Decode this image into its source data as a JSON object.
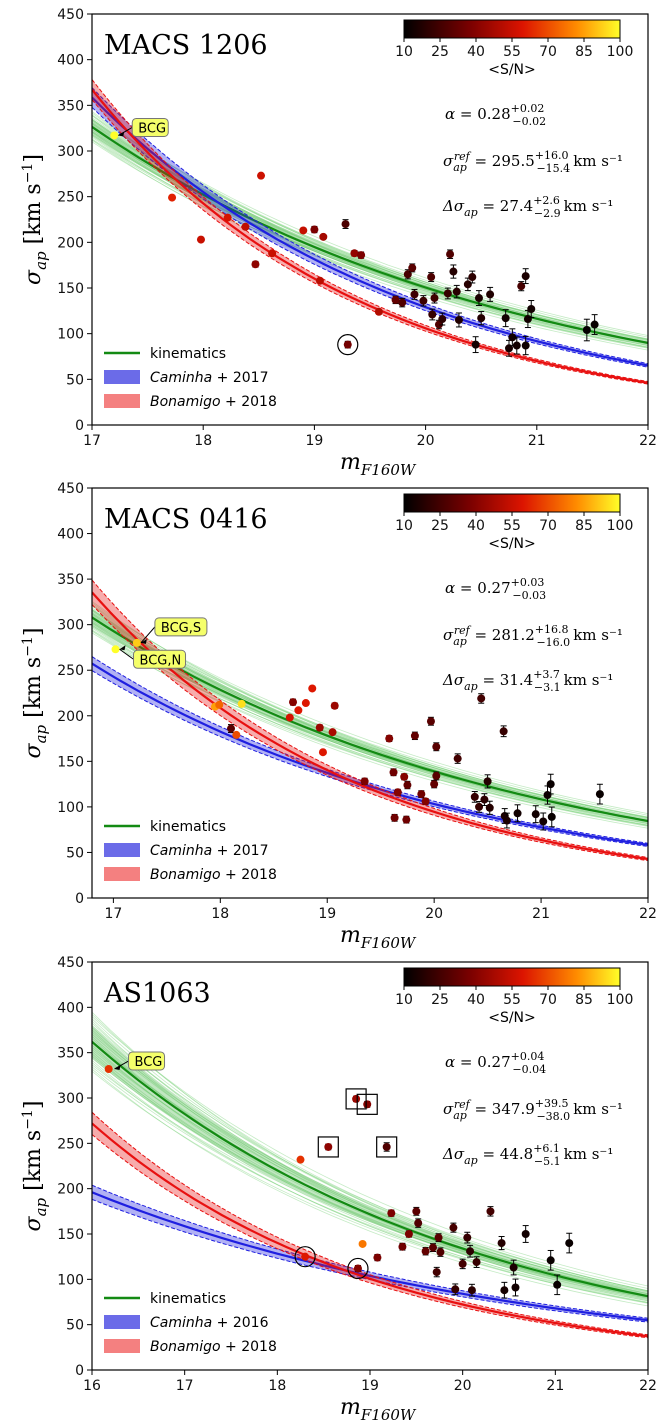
{
  "chart_data": [
    {
      "type": "scatter",
      "title": "MACS 1206",
      "xlabel": "m_F160W",
      "ylabel": "σ_ap [km s^-1]",
      "xlim": [
        17,
        22
      ],
      "ylim": [
        0,
        450
      ],
      "xticks": [
        "17",
        "18",
        "19",
        "20",
        "21",
        "22"
      ],
      "yticks": [
        "0",
        "50",
        "100",
        "150",
        "200",
        "250",
        "300",
        "350",
        "400",
        "450"
      ],
      "colorbar": {
        "label": "<S/N>",
        "ticks": [
          "10",
          "25",
          "40",
          "55",
          "70",
          "85",
          "100"
        ],
        "range": [
          10,
          100
        ]
      },
      "params": {
        "alpha": {
          "value": "0.28",
          "plus": "+0.02",
          "minus": "−0.02"
        },
        "sigma_ref": {
          "value": "295.5",
          "plus": "+16.0",
          "minus": "−15.4",
          "unit": "km s⁻¹"
        },
        "delta_sigma": {
          "value": "27.4",
          "plus": "+2.6",
          "minus": "−2.9",
          "unit": "km s⁻¹"
        }
      },
      "legend": {
        "placement": "lower-left",
        "entries": [
          "kinematics",
          "Caminha + 2017",
          "Bonamigo + 2018"
        ]
      },
      "series": [
        {
          "name": "kinematics",
          "ref_mag": 17.2,
          "ref_sigma": 310,
          "slope": 0.28,
          "band": 0.05,
          "color": "#138a13"
        },
        {
          "name": "Caminha + 2017",
          "ref_mag": 17.2,
          "ref_sigma": 335,
          "slope": 0.37,
          "band": 0.03,
          "color": "#1f1fe0"
        },
        {
          "name": "Bonamigo + 2018",
          "ref_mag": 17.2,
          "ref_sigma": 338,
          "slope": 0.45,
          "band": 0.03,
          "color": "#e81010"
        }
      ],
      "annotations": [
        {
          "text": "BCG",
          "x": 17.2,
          "y": 317
        }
      ],
      "markers": [
        {
          "shape": "circle",
          "x": 19.3,
          "y": 88
        }
      ],
      "points": [
        {
          "x": 17.2,
          "y": 317,
          "sn": 100
        },
        {
          "x": 17.72,
          "y": 249,
          "sn": 62
        },
        {
          "x": 17.98,
          "y": 203,
          "sn": 55
        },
        {
          "x": 18.22,
          "y": 227,
          "sn": 58
        },
        {
          "x": 18.38,
          "y": 217,
          "sn": 53
        },
        {
          "x": 18.47,
          "y": 176,
          "sn": 42
        },
        {
          "x": 18.52,
          "y": 273,
          "sn": 56
        },
        {
          "x": 18.62,
          "y": 188,
          "sn": 55
        },
        {
          "x": 18.9,
          "y": 213,
          "sn": 54
        },
        {
          "x": 19.0,
          "y": 214,
          "sn": 38
        },
        {
          "x": 19.05,
          "y": 158,
          "sn": 52
        },
        {
          "x": 19.08,
          "y": 206,
          "sn": 47
        },
        {
          "x": 19.28,
          "y": 220,
          "sn": 27
        },
        {
          "x": 19.3,
          "y": 88,
          "sn": 36
        },
        {
          "x": 19.36,
          "y": 188,
          "sn": 43
        },
        {
          "x": 19.42,
          "y": 186,
          "sn": 38
        },
        {
          "x": 19.58,
          "y": 124,
          "sn": 50
        },
        {
          "x": 19.73,
          "y": 137,
          "sn": 32
        },
        {
          "x": 19.79,
          "y": 134,
          "sn": 28
        },
        {
          "x": 19.84,
          "y": 165,
          "sn": 26
        },
        {
          "x": 19.88,
          "y": 172,
          "sn": 30
        },
        {
          "x": 19.9,
          "y": 143,
          "sn": 24
        },
        {
          "x": 19.98,
          "y": 136,
          "sn": 23
        },
        {
          "x": 20.05,
          "y": 162,
          "sn": 27
        },
        {
          "x": 20.06,
          "y": 121,
          "sn": 22
        },
        {
          "x": 20.08,
          "y": 139,
          "sn": 24
        },
        {
          "x": 20.12,
          "y": 110,
          "sn": 28
        },
        {
          "x": 20.15,
          "y": 116,
          "sn": 20
        },
        {
          "x": 20.2,
          "y": 144,
          "sn": 22
        },
        {
          "x": 20.22,
          "y": 187,
          "sn": 28
        },
        {
          "x": 20.25,
          "y": 168,
          "sn": 18
        },
        {
          "x": 20.28,
          "y": 146,
          "sn": 19
        },
        {
          "x": 20.3,
          "y": 115,
          "sn": 17
        },
        {
          "x": 20.38,
          "y": 154,
          "sn": 19
        },
        {
          "x": 20.42,
          "y": 162,
          "sn": 20
        },
        {
          "x": 20.45,
          "y": 88,
          "sn": 15
        },
        {
          "x": 20.48,
          "y": 139,
          "sn": 16
        },
        {
          "x": 20.5,
          "y": 117,
          "sn": 18
        },
        {
          "x": 20.58,
          "y": 143,
          "sn": 17
        },
        {
          "x": 20.72,
          "y": 117,
          "sn": 14
        },
        {
          "x": 20.75,
          "y": 84,
          "sn": 15
        },
        {
          "x": 20.78,
          "y": 96,
          "sn": 14
        },
        {
          "x": 20.82,
          "y": 87,
          "sn": 14
        },
        {
          "x": 20.86,
          "y": 152,
          "sn": 26
        },
        {
          "x": 20.9,
          "y": 163,
          "sn": 16
        },
        {
          "x": 20.9,
          "y": 87,
          "sn": 13
        },
        {
          "x": 20.92,
          "y": 116,
          "sn": 14
        },
        {
          "x": 20.95,
          "y": 127,
          "sn": 14
        },
        {
          "x": 21.45,
          "y": 104,
          "sn": 11
        },
        {
          "x": 21.52,
          "y": 110,
          "sn": 12
        }
      ]
    },
    {
      "type": "scatter",
      "title": "MACS 0416",
      "xlabel": "m_F160W",
      "ylabel": "σ_ap [km s^-1]",
      "xlim": [
        16.8,
        22
      ],
      "ylim": [
        0,
        450
      ],
      "xticks": [
        "17",
        "18",
        "19",
        "20",
        "21",
        "22"
      ],
      "yticks": [
        "0",
        "50",
        "100",
        "150",
        "200",
        "250",
        "300",
        "350",
        "400",
        "450"
      ],
      "colorbar": {
        "label": "<S/N>",
        "ticks": [
          "10",
          "25",
          "40",
          "55",
          "70",
          "85",
          "100"
        ],
        "range": [
          10,
          100
        ]
      },
      "params": {
        "alpha": {
          "value": "0.27",
          "plus": "+0.03",
          "minus": "−0.03"
        },
        "sigma_ref": {
          "value": "281.2",
          "plus": "+16.8",
          "minus": "−16.0",
          "unit": "km s⁻¹"
        },
        "delta_sigma": {
          "value": "31.4",
          "plus": "+3.7",
          "minus": "−3.1",
          "unit": "km s⁻¹"
        }
      },
      "legend": {
        "placement": "lower-left",
        "entries": [
          "kinematics",
          "Caminha + 2017",
          "Bonamigo + 2018"
        ]
      },
      "series": [
        {
          "name": "kinematics",
          "ref_mag": 17.0,
          "ref_sigma": 293,
          "slope": 0.27,
          "band": 0.055,
          "color": "#138a13"
        },
        {
          "name": "Caminha + 2017",
          "ref_mag": 17.0,
          "ref_sigma": 243,
          "slope": 0.31,
          "band": 0.03,
          "color": "#1f1fe0"
        },
        {
          "name": "Bonamigo + 2018",
          "ref_mag": 17.0,
          "ref_sigma": 310,
          "slope": 0.43,
          "band": 0.04,
          "color": "#e81010"
        }
      ],
      "annotations": [
        {
          "text": "BCG,S",
          "x": 17.22,
          "y": 280
        },
        {
          "text": "BCG,N",
          "x": 17.02,
          "y": 273
        }
      ],
      "points": [
        {
          "x": 17.02,
          "y": 273,
          "sn": 100
        },
        {
          "x": 17.22,
          "y": 280,
          "sn": 92
        },
        {
          "x": 17.95,
          "y": 210,
          "sn": 85
        },
        {
          "x": 17.99,
          "y": 212,
          "sn": 75
        },
        {
          "x": 18.1,
          "y": 186,
          "sn": 30
        },
        {
          "x": 18.15,
          "y": 179,
          "sn": 70
        },
        {
          "x": 18.2,
          "y": 213,
          "sn": 95
        },
        {
          "x": 18.65,
          "y": 198,
          "sn": 58
        },
        {
          "x": 18.68,
          "y": 215,
          "sn": 40
        },
        {
          "x": 18.73,
          "y": 206,
          "sn": 60
        },
        {
          "x": 18.8,
          "y": 214,
          "sn": 60
        },
        {
          "x": 18.86,
          "y": 230,
          "sn": 60
        },
        {
          "x": 18.93,
          "y": 187,
          "sn": 45
        },
        {
          "x": 18.96,
          "y": 160,
          "sn": 60
        },
        {
          "x": 19.05,
          "y": 182,
          "sn": 48
        },
        {
          "x": 19.07,
          "y": 211,
          "sn": 45
        },
        {
          "x": 19.35,
          "y": 128,
          "sn": 38
        },
        {
          "x": 19.58,
          "y": 175,
          "sn": 40
        },
        {
          "x": 19.62,
          "y": 138,
          "sn": 35
        },
        {
          "x": 19.63,
          "y": 88,
          "sn": 35
        },
        {
          "x": 19.66,
          "y": 116,
          "sn": 40
        },
        {
          "x": 19.72,
          "y": 133,
          "sn": 40
        },
        {
          "x": 19.74,
          "y": 86,
          "sn": 35
        },
        {
          "x": 19.75,
          "y": 124,
          "sn": 32
        },
        {
          "x": 19.82,
          "y": 178,
          "sn": 32
        },
        {
          "x": 19.88,
          "y": 114,
          "sn": 35
        },
        {
          "x": 19.92,
          "y": 106,
          "sn": 40
        },
        {
          "x": 19.97,
          "y": 194,
          "sn": 30
        },
        {
          "x": 20.0,
          "y": 125,
          "sn": 32
        },
        {
          "x": 20.02,
          "y": 166,
          "sn": 30
        },
        {
          "x": 20.02,
          "y": 134,
          "sn": 30
        },
        {
          "x": 20.22,
          "y": 153,
          "sn": 25
        },
        {
          "x": 20.38,
          "y": 111,
          "sn": 22
        },
        {
          "x": 20.42,
          "y": 100,
          "sn": 22
        },
        {
          "x": 20.44,
          "y": 219,
          "sn": 25
        },
        {
          "x": 20.47,
          "y": 108,
          "sn": 20
        },
        {
          "x": 20.5,
          "y": 128,
          "sn": 18
        },
        {
          "x": 20.52,
          "y": 99,
          "sn": 18
        },
        {
          "x": 20.65,
          "y": 183,
          "sn": 22
        },
        {
          "x": 20.66,
          "y": 90,
          "sn": 16
        },
        {
          "x": 20.68,
          "y": 85,
          "sn": 16
        },
        {
          "x": 20.78,
          "y": 93,
          "sn": 14
        },
        {
          "x": 20.95,
          "y": 92,
          "sn": 14
        },
        {
          "x": 21.02,
          "y": 84,
          "sn": 14
        },
        {
          "x": 21.06,
          "y": 113,
          "sn": 13
        },
        {
          "x": 21.09,
          "y": 125,
          "sn": 12
        },
        {
          "x": 21.1,
          "y": 89,
          "sn": 12
        },
        {
          "x": 21.55,
          "y": 114,
          "sn": 12
        }
      ]
    },
    {
      "type": "scatter",
      "title": "AS1063",
      "xlabel": "m_F160W",
      "ylabel": "σ_ap [km s^-1]",
      "xlim": [
        16,
        22
      ],
      "ylim": [
        0,
        450
      ],
      "xticks": [
        "16",
        "17",
        "18",
        "19",
        "20",
        "21",
        "22"
      ],
      "yticks": [
        "0",
        "50",
        "100",
        "150",
        "200",
        "250",
        "300",
        "350",
        "400",
        "450"
      ],
      "colorbar": {
        "label": "<S/N>",
        "ticks": [
          "10",
          "25",
          "40",
          "55",
          "70",
          "85",
          "100"
        ],
        "range": [
          10,
          100
        ]
      },
      "params": {
        "alpha": {
          "value": "0.27",
          "plus": "+0.04",
          "minus": "−0.04"
        },
        "sigma_ref": {
          "value": "347.9",
          "plus": "+39.5",
          "minus": "−38.0",
          "unit": "km s⁻¹"
        },
        "delta_sigma": {
          "value": "44.8",
          "plus": "+6.1",
          "minus": "−5.1",
          "unit": "km s⁻¹"
        }
      },
      "legend": {
        "placement": "lower-left",
        "entries": [
          "kinematics",
          "Caminha + 2016",
          "Bonamigo + 2018"
        ]
      },
      "series": [
        {
          "name": "kinematics",
          "ref_mag": 16.0,
          "ref_sigma": 362,
          "slope": 0.27,
          "band": 0.09,
          "color": "#138a13"
        },
        {
          "name": "Caminha + 2016",
          "ref_mag": 16.0,
          "ref_sigma": 196,
          "slope": 0.23,
          "band": 0.04,
          "color": "#1f1fe0"
        },
        {
          "name": "Bonamigo + 2018",
          "ref_mag": 16.0,
          "ref_sigma": 272,
          "slope": 0.36,
          "band": 0.045,
          "color": "#e81010"
        }
      ],
      "annotations": [
        {
          "text": "BCG",
          "x": 16.2,
          "y": 332
        }
      ],
      "markers": [
        {
          "shape": "circle",
          "x": 18.3,
          "y": 125
        },
        {
          "shape": "circle",
          "x": 18.87,
          "y": 112
        },
        {
          "shape": "square",
          "x": 18.55,
          "y": 246
        },
        {
          "shape": "square",
          "x": 18.85,
          "y": 299
        },
        {
          "shape": "square",
          "x": 18.97,
          "y": 293
        },
        {
          "shape": "square",
          "x": 19.18,
          "y": 246
        }
      ],
      "points": [
        {
          "x": 16.18,
          "y": 332,
          "sn": 65
        },
        {
          "x": 18.25,
          "y": 232,
          "sn": 65
        },
        {
          "x": 18.3,
          "y": 125,
          "sn": 60
        },
        {
          "x": 18.55,
          "y": 246,
          "sn": 42
        },
        {
          "x": 18.85,
          "y": 299,
          "sn": 45
        },
        {
          "x": 18.87,
          "y": 112,
          "sn": 40
        },
        {
          "x": 18.92,
          "y": 139,
          "sn": 78
        },
        {
          "x": 18.97,
          "y": 293,
          "sn": 40
        },
        {
          "x": 19.08,
          "y": 124,
          "sn": 38
        },
        {
          "x": 19.18,
          "y": 246,
          "sn": 28
        },
        {
          "x": 19.23,
          "y": 173,
          "sn": 38
        },
        {
          "x": 19.35,
          "y": 136,
          "sn": 35
        },
        {
          "x": 19.42,
          "y": 150,
          "sn": 38
        },
        {
          "x": 19.5,
          "y": 175,
          "sn": 30
        },
        {
          "x": 19.52,
          "y": 162,
          "sn": 28
        },
        {
          "x": 19.6,
          "y": 131,
          "sn": 32
        },
        {
          "x": 19.68,
          "y": 135,
          "sn": 30
        },
        {
          "x": 19.72,
          "y": 108,
          "sn": 25
        },
        {
          "x": 19.74,
          "y": 146,
          "sn": 30
        },
        {
          "x": 19.76,
          "y": 130,
          "sn": 28
        },
        {
          "x": 19.9,
          "y": 157,
          "sn": 26
        },
        {
          "x": 19.92,
          "y": 89,
          "sn": 22
        },
        {
          "x": 20.0,
          "y": 117,
          "sn": 25
        },
        {
          "x": 20.05,
          "y": 146,
          "sn": 22
        },
        {
          "x": 20.08,
          "y": 131,
          "sn": 20
        },
        {
          "x": 20.1,
          "y": 88,
          "sn": 20
        },
        {
          "x": 20.15,
          "y": 119,
          "sn": 22
        },
        {
          "x": 20.3,
          "y": 175,
          "sn": 25
        },
        {
          "x": 20.42,
          "y": 140,
          "sn": 18
        },
        {
          "x": 20.45,
          "y": 88,
          "sn": 15
        },
        {
          "x": 20.55,
          "y": 113,
          "sn": 16
        },
        {
          "x": 20.57,
          "y": 91,
          "sn": 14
        },
        {
          "x": 20.68,
          "y": 150,
          "sn": 14
        },
        {
          "x": 20.95,
          "y": 121,
          "sn": 12
        },
        {
          "x": 21.02,
          "y": 94,
          "sn": 12
        },
        {
          "x": 21.15,
          "y": 140,
          "sn": 12
        }
      ]
    }
  ]
}
